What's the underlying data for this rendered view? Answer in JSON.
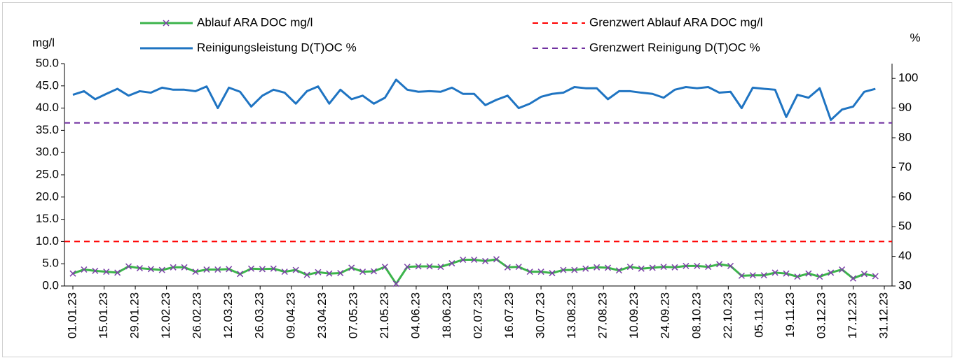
{
  "chart_data": {
    "type": "line",
    "y_label": "mg/l",
    "y2_label": "%",
    "x": [
      "01.01.23",
      "06.01.23",
      "11.01.23",
      "16.01.23",
      "21.01.23",
      "26.01.23",
      "31.01.23",
      "05.02.23",
      "10.02.23",
      "15.02.23",
      "20.02.23",
      "25.02.23",
      "02.03.23",
      "07.03.23",
      "12.03.23",
      "17.03.23",
      "22.03.23",
      "27.03.23",
      "01.04.23",
      "06.04.23",
      "11.04.23",
      "16.04.23",
      "21.04.23",
      "26.04.23",
      "01.05.23",
      "06.05.23",
      "11.05.23",
      "16.05.23",
      "21.05.23",
      "26.05.23",
      "31.05.23",
      "05.06.23",
      "10.06.23",
      "15.06.23",
      "20.06.23",
      "25.06.23",
      "30.06.23",
      "05.07.23",
      "10.07.23",
      "15.07.23",
      "20.07.23",
      "25.07.23",
      "30.07.23",
      "04.08.23",
      "09.08.23",
      "14.08.23",
      "19.08.23",
      "24.08.23",
      "29.08.23",
      "03.09.23",
      "08.09.23",
      "13.09.23",
      "18.09.23",
      "23.09.23",
      "28.09.23",
      "03.10.23",
      "08.10.23",
      "13.10.23",
      "18.10.23",
      "23.10.23",
      "28.10.23",
      "02.11.23",
      "07.11.23",
      "12.11.23",
      "17.11.23",
      "22.11.23",
      "27.11.23",
      "02.12.23",
      "07.12.23",
      "12.12.23",
      "17.12.23",
      "22.12.23",
      "27.12.23"
    ],
    "xlim": [
      "01.01.23",
      "31.12.23"
    ],
    "xticks": [
      "01.01.23",
      "15.01.23",
      "29.01.23",
      "12.02.23",
      "26.02.23",
      "12.03.23",
      "26.03.23",
      "09.04.23",
      "23.04.23",
      "07.05.23",
      "21.05.23",
      "04.06.23",
      "18.06.23",
      "02.07.23",
      "16.07.23",
      "30.07.23",
      "13.08.23",
      "27.08.23",
      "10.09.23",
      "24.09.23",
      "08.10.23",
      "22.10.23",
      "05.11.23",
      "19.11.23",
      "03.12.23",
      "17.12.23",
      "31.12.23"
    ],
    "ylim": [
      0,
      50
    ],
    "yticks": [
      {
        "value": 0,
        "label": "0.0"
      },
      {
        "value": 5,
        "label": "5.0"
      },
      {
        "value": 10,
        "label": "10.0"
      },
      {
        "value": 15,
        "label": "15.0"
      },
      {
        "value": 20,
        "label": "20.0"
      },
      {
        "value": 25,
        "label": "25.0"
      },
      {
        "value": 30,
        "label": "30.0"
      },
      {
        "value": 35,
        "label": "35.0"
      },
      {
        "value": 40,
        "label": "40.0"
      },
      {
        "value": 45,
        "label": "45.0"
      },
      {
        "value": 50,
        "label": "50.0"
      }
    ],
    "y2lim": [
      30,
      105
    ],
    "y2ticks": [
      30,
      40,
      50,
      60,
      70,
      80,
      90,
      100
    ],
    "series": [
      {
        "name": "Ablauf ARA DOC mg/l",
        "color": "#3cb44b",
        "marker_color": "#7b3fa8",
        "values": [
          2.8,
          3.7,
          3.4,
          3.2,
          3.0,
          4.4,
          4.0,
          3.8,
          3.6,
          4.2,
          4.2,
          3.2,
          3.7,
          3.7,
          3.8,
          2.7,
          3.9,
          3.8,
          3.9,
          3.2,
          3.6,
          2.5,
          3.1,
          2.8,
          2.9,
          4.1,
          3.2,
          3.3,
          4.3,
          0.5,
          4.3,
          4.4,
          4.4,
          4.3,
          5.1,
          5.9,
          5.9,
          5.6,
          6.0,
          4.2,
          4.3,
          3.2,
          3.2,
          2.9,
          3.6,
          3.6,
          3.9,
          4.2,
          4.1,
          3.5,
          4.3,
          3.9,
          4.1,
          4.3,
          4.2,
          4.5,
          4.5,
          4.3,
          4.9,
          4.5,
          2.3,
          2.4,
          2.4,
          3.0,
          2.8,
          2.1,
          2.8,
          2.1,
          3.0,
          3.7,
          1.7,
          2.7,
          2.2
        ]
      },
      {
        "name": "Grenzwert Ablauf ARA DOC mg/l",
        "color": "#ff0000",
        "dashed": true,
        "value": 10
      },
      {
        "name": "Reinigungsleistung D(T)OC %",
        "color": "#1f74c2",
        "axis": "y2",
        "values": [
          94.5,
          95.7,
          93.0,
          94.8,
          96.5,
          94.2,
          95.7,
          95.2,
          96.9,
          96.2,
          96.2,
          95.7,
          97.3,
          90.0,
          96.9,
          95.5,
          90.5,
          94.2,
          96.2,
          95.2,
          91.5,
          95.7,
          97.3,
          91.5,
          96.2,
          93.0,
          94.2,
          91.5,
          93.5,
          99.6,
          96.2,
          95.5,
          95.7,
          95.5,
          96.9,
          94.8,
          94.8,
          91.0,
          92.8,
          94.2,
          90.0,
          91.5,
          93.8,
          94.8,
          95.2,
          97.1,
          96.7,
          96.7,
          93.0,
          95.7,
          95.7,
          95.2,
          94.8,
          93.5,
          96.2,
          97.1,
          96.7,
          97.1,
          95.2,
          95.5,
          90.0,
          96.9,
          96.5,
          96.2,
          87.0,
          94.5,
          93.5,
          96.7,
          86.0,
          89.5,
          90.5,
          95.5,
          96.5
        ]
      },
      {
        "name": "Grenzwert Reinigung D(T)OC %",
        "color": "#7030a0",
        "dashed": true,
        "axis": "y2",
        "value": 85
      }
    ]
  }
}
